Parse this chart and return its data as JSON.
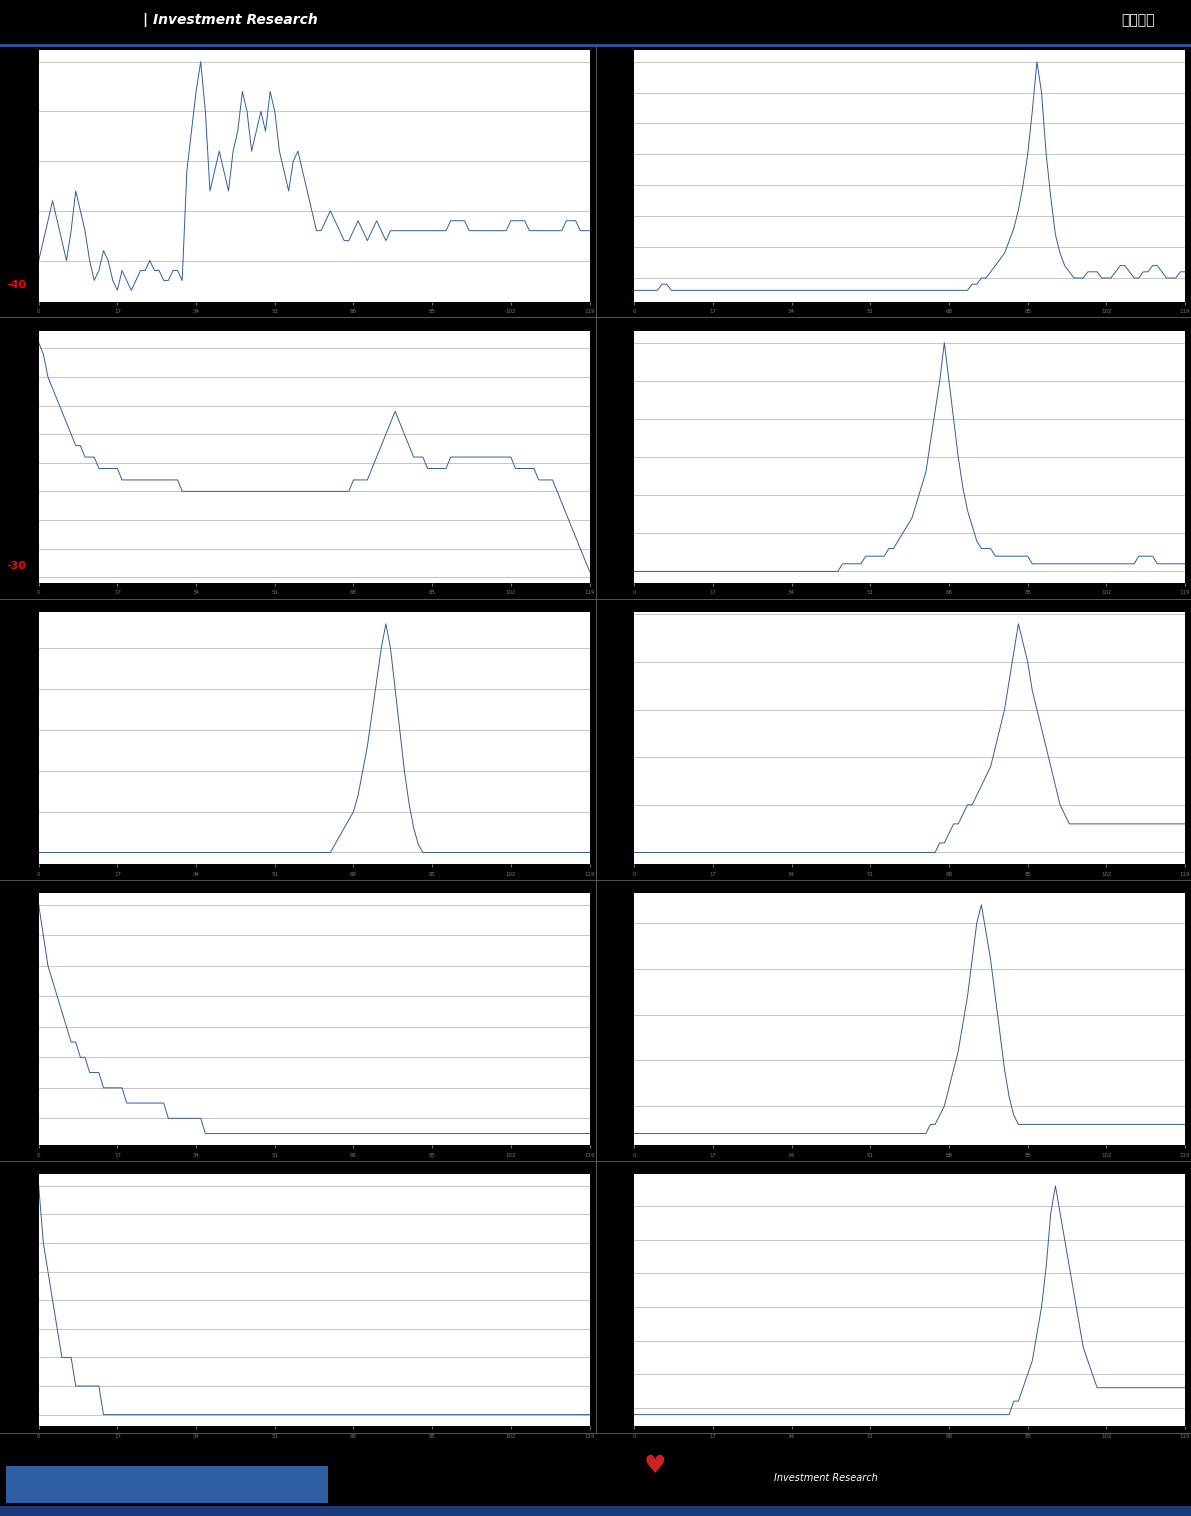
{
  "header_text": "Investment Research",
  "header_right": "估値周报",
  "background_color": "#000000",
  "chart_bg": "#ffffff",
  "line_color": "#2e5fa3",
  "grid_color": "#999999",
  "header_bar_color": "#2a4d8f",
  "footer_bar_color": "#2e5fa3",
  "fig_width": 11.91,
  "fig_height": 15.16,
  "n_rows": 5,
  "n_cols": 2,
  "charts": [
    {
      "row": 0,
      "col": 0,
      "red_label": "-40",
      "y": [
        5,
        7,
        9,
        11,
        9,
        7,
        5,
        8,
        12,
        10,
        8,
        5,
        3,
        4,
        6,
        5,
        3,
        2,
        4,
        3,
        2,
        3,
        4,
        4,
        5,
        4,
        4,
        3,
        3,
        4,
        4,
        3,
        14,
        18,
        22,
        25,
        20,
        12,
        14,
        16,
        14,
        12,
        16,
        18,
        22,
        20,
        16,
        18,
        20,
        18,
        22,
        20,
        16,
        14,
        12,
        15,
        16,
        14,
        12,
        10,
        8,
        8,
        9,
        10,
        9,
        8,
        7,
        7,
        8,
        9,
        8,
        7,
        8,
        9,
        8,
        7,
        8,
        8,
        8,
        8,
        8,
        8,
        8,
        8,
        8,
        8,
        8,
        8,
        8,
        9,
        9,
        9,
        9,
        8,
        8,
        8,
        8,
        8,
        8,
        8,
        8,
        8,
        9,
        9,
        9,
        9,
        8,
        8,
        8,
        8,
        8,
        8,
        8,
        8,
        9,
        9,
        9,
        8,
        8,
        8
      ]
    },
    {
      "row": 0,
      "col": 1,
      "red_label": null,
      "y": [
        3,
        3,
        3,
        3,
        3,
        3,
        4,
        4,
        3,
        3,
        3,
        3,
        3,
        3,
        3,
        3,
        3,
        3,
        3,
        3,
        3,
        3,
        3,
        3,
        3,
        3,
        3,
        3,
        3,
        3,
        3,
        3,
        3,
        3,
        3,
        3,
        3,
        3,
        3,
        3,
        3,
        3,
        3,
        3,
        3,
        3,
        3,
        3,
        3,
        3,
        3,
        3,
        3,
        3,
        3,
        3,
        3,
        3,
        3,
        3,
        3,
        3,
        3,
        3,
        3,
        3,
        3,
        3,
        3,
        3,
        3,
        3,
        3,
        4,
        4,
        5,
        5,
        6,
        7,
        8,
        9,
        11,
        13,
        16,
        20,
        25,
        32,
        40,
        35,
        25,
        18,
        12,
        9,
        7,
        6,
        5,
        5,
        5,
        6,
        6,
        6,
        5,
        5,
        5,
        6,
        7,
        7,
        6,
        5,
        5,
        6,
        6,
        7,
        7,
        6,
        5,
        5,
        5,
        6,
        6
      ]
    },
    {
      "row": 1,
      "col": 0,
      "red_label": "-30",
      "y": [
        18,
        17,
        15,
        14,
        13,
        12,
        11,
        10,
        9,
        9,
        8,
        8,
        8,
        7,
        7,
        7,
        7,
        7,
        6,
        6,
        6,
        6,
        6,
        6,
        6,
        6,
        6,
        6,
        6,
        6,
        6,
        5,
        5,
        5,
        5,
        5,
        5,
        5,
        5,
        5,
        5,
        5,
        5,
        5,
        5,
        5,
        5,
        5,
        5,
        5,
        5,
        5,
        5,
        5,
        5,
        5,
        5,
        5,
        5,
        5,
        5,
        5,
        5,
        5,
        5,
        5,
        5,
        5,
        6,
        6,
        6,
        6,
        7,
        8,
        9,
        10,
        11,
        12,
        11,
        10,
        9,
        8,
        8,
        8,
        7,
        7,
        7,
        7,
        7,
        8,
        8,
        8,
        8,
        8,
        8,
        8,
        8,
        8,
        8,
        8,
        8,
        8,
        8,
        7,
        7,
        7,
        7,
        7,
        6,
        6,
        6,
        6,
        5,
        4,
        3,
        2,
        1,
        0,
        -1,
        -2
      ]
    },
    {
      "row": 1,
      "col": 1,
      "red_label": null,
      "y": [
        5,
        5,
        5,
        5,
        5,
        5,
        5,
        5,
        5,
        5,
        5,
        5,
        5,
        5,
        5,
        5,
        5,
        5,
        5,
        5,
        5,
        5,
        5,
        5,
        5,
        5,
        5,
        5,
        5,
        5,
        5,
        5,
        5,
        5,
        5,
        5,
        5,
        5,
        5,
        5,
        5,
        5,
        5,
        5,
        5,
        6,
        6,
        6,
        6,
        6,
        7,
        7,
        7,
        7,
        7,
        8,
        8,
        9,
        10,
        11,
        12,
        14,
        16,
        18,
        22,
        26,
        30,
        35,
        30,
        25,
        20,
        16,
        13,
        11,
        9,
        8,
        8,
        8,
        7,
        7,
        7,
        7,
        7,
        7,
        7,
        7,
        6,
        6,
        6,
        6,
        6,
        6,
        6,
        6,
        6,
        6,
        6,
        6,
        6,
        6,
        6,
        6,
        6,
        6,
        6,
        6,
        6,
        6,
        6,
        7,
        7,
        7,
        7,
        6,
        6,
        6,
        6,
        6,
        6,
        6
      ]
    },
    {
      "row": 2,
      "col": 0,
      "red_label": null,
      "y": [
        5,
        5,
        5,
        5,
        5,
        5,
        5,
        5,
        5,
        5,
        5,
        5,
        5,
        5,
        5,
        5,
        5,
        5,
        5,
        5,
        5,
        5,
        5,
        5,
        5,
        5,
        5,
        5,
        5,
        5,
        5,
        5,
        5,
        5,
        5,
        5,
        5,
        5,
        5,
        5,
        5,
        5,
        5,
        5,
        5,
        5,
        5,
        5,
        5,
        5,
        5,
        5,
        5,
        5,
        5,
        5,
        5,
        5,
        5,
        5,
        5,
        5,
        5,
        5,
        6,
        7,
        8,
        9,
        10,
        12,
        15,
        18,
        22,
        26,
        30,
        33,
        30,
        25,
        20,
        15,
        11,
        8,
        6,
        5,
        5,
        5,
        5,
        5,
        5,
        5,
        5,
        5,
        5,
        5,
        5,
        5,
        5,
        5,
        5,
        5,
        5,
        5,
        5,
        5,
        5,
        5,
        5,
        5,
        5,
        5,
        5,
        5,
        5,
        5,
        5,
        5,
        5,
        5,
        5,
        5
      ]
    },
    {
      "row": 2,
      "col": 1,
      "red_label": null,
      "y": [
        5,
        5,
        5,
        5,
        5,
        5,
        5,
        5,
        5,
        5,
        5,
        5,
        5,
        5,
        5,
        5,
        5,
        5,
        5,
        5,
        5,
        5,
        5,
        5,
        5,
        5,
        5,
        5,
        5,
        5,
        5,
        5,
        5,
        5,
        5,
        5,
        5,
        5,
        5,
        5,
        5,
        5,
        5,
        5,
        5,
        5,
        5,
        5,
        5,
        5,
        5,
        5,
        5,
        5,
        5,
        5,
        5,
        5,
        5,
        5,
        5,
        5,
        5,
        5,
        5,
        5,
        6,
        6,
        7,
        8,
        8,
        9,
        10,
        10,
        11,
        12,
        13,
        14,
        16,
        18,
        20,
        23,
        26,
        29,
        27,
        25,
        22,
        20,
        18,
        16,
        14,
        12,
        10,
        9,
        8,
        8,
        8,
        8,
        8,
        8,
        8,
        8,
        8,
        8,
        8,
        8,
        8,
        8,
        8,
        8,
        8,
        8,
        8,
        8,
        8,
        8,
        8,
        8,
        8,
        8
      ]
    },
    {
      "row": 3,
      "col": 0,
      "red_label": null,
      "y": [
        22,
        20,
        18,
        17,
        16,
        15,
        14,
        13,
        13,
        12,
        12,
        11,
        11,
        11,
        10,
        10,
        10,
        10,
        10,
        9,
        9,
        9,
        9,
        9,
        9,
        9,
        9,
        9,
        8,
        8,
        8,
        8,
        8,
        8,
        8,
        8,
        7,
        7,
        7,
        7,
        7,
        7,
        7,
        7,
        7,
        7,
        7,
        7,
        7,
        7,
        7,
        7,
        7,
        7,
        7,
        7,
        7,
        7,
        7,
        7,
        7,
        7,
        7,
        7,
        7,
        7,
        7,
        7,
        7,
        7,
        7,
        7,
        7,
        7,
        7,
        7,
        7,
        7,
        7,
        7,
        7,
        7,
        7,
        7,
        7,
        7,
        7,
        7,
        7,
        7,
        7,
        7,
        7,
        7,
        7,
        7,
        7,
        7,
        7,
        7,
        7,
        7,
        7,
        7,
        7,
        7,
        7,
        7,
        7,
        7,
        7,
        7,
        7,
        7,
        7,
        7,
        7,
        7,
        7,
        7
      ]
    },
    {
      "row": 3,
      "col": 1,
      "red_label": null,
      "y": [
        7,
        7,
        7,
        7,
        7,
        7,
        7,
        7,
        7,
        7,
        7,
        7,
        7,
        7,
        7,
        7,
        7,
        7,
        7,
        7,
        7,
        7,
        7,
        7,
        7,
        7,
        7,
        7,
        7,
        7,
        7,
        7,
        7,
        7,
        7,
        7,
        7,
        7,
        7,
        7,
        7,
        7,
        7,
        7,
        7,
        7,
        7,
        7,
        7,
        7,
        7,
        7,
        7,
        7,
        7,
        7,
        7,
        7,
        7,
        7,
        7,
        7,
        7,
        7,
        8,
        8,
        9,
        10,
        12,
        14,
        16,
        19,
        22,
        26,
        30,
        32,
        29,
        26,
        22,
        18,
        14,
        11,
        9,
        8,
        8,
        8,
        8,
        8,
        8,
        8,
        8,
        8,
        8,
        8,
        8,
        8,
        8,
        8,
        8,
        8,
        8,
        8,
        8,
        8,
        8,
        8,
        8,
        8,
        8,
        8,
        8,
        8,
        8,
        8,
        8,
        8,
        8,
        8,
        8,
        8
      ]
    },
    {
      "row": 4,
      "col": 0,
      "red_label": null,
      "y": [
        14,
        12,
        11,
        10,
        9,
        8,
        8,
        8,
        7,
        7,
        7,
        7,
        7,
        7,
        6,
        6,
        6,
        6,
        6,
        6,
        6,
        6,
        6,
        6,
        6,
        6,
        6,
        6,
        6,
        6,
        6,
        6,
        6,
        6,
        6,
        6,
        6,
        6,
        6,
        6,
        6,
        6,
        6,
        6,
        6,
        6,
        6,
        6,
        6,
        6,
        6,
        6,
        6,
        6,
        6,
        6,
        6,
        6,
        6,
        6,
        6,
        6,
        6,
        6,
        6,
        6,
        6,
        6,
        6,
        6,
        6,
        6,
        6,
        6,
        6,
        6,
        6,
        6,
        6,
        6,
        6,
        6,
        6,
        6,
        6,
        6,
        6,
        6,
        6,
        6,
        6,
        6,
        6,
        6,
        6,
        6,
        6,
        6,
        6,
        6,
        6,
        6,
        6,
        6,
        6,
        6,
        6,
        6,
        6,
        6,
        6,
        6,
        6,
        6,
        6,
        6,
        6,
        6,
        6,
        6
      ]
    },
    {
      "row": 4,
      "col": 1,
      "red_label": null,
      "y": [
        7,
        7,
        7,
        7,
        7,
        7,
        7,
        7,
        7,
        7,
        7,
        7,
        7,
        7,
        7,
        7,
        7,
        7,
        7,
        7,
        7,
        7,
        7,
        7,
        7,
        7,
        7,
        7,
        7,
        7,
        7,
        7,
        7,
        7,
        7,
        7,
        7,
        7,
        7,
        7,
        7,
        7,
        7,
        7,
        7,
        7,
        7,
        7,
        7,
        7,
        7,
        7,
        7,
        7,
        7,
        7,
        7,
        7,
        7,
        7,
        7,
        7,
        7,
        7,
        7,
        7,
        7,
        7,
        7,
        7,
        7,
        7,
        7,
        7,
        7,
        7,
        7,
        7,
        7,
        7,
        7,
        7,
        8,
        8,
        9,
        10,
        11,
        13,
        15,
        18,
        22,
        24,
        22,
        20,
        18,
        16,
        14,
        12,
        11,
        10,
        9,
        9,
        9,
        9,
        9,
        9,
        9,
        9,
        9,
        9,
        9,
        9,
        9,
        9,
        9,
        9,
        9,
        9,
        9,
        9
      ]
    }
  ]
}
